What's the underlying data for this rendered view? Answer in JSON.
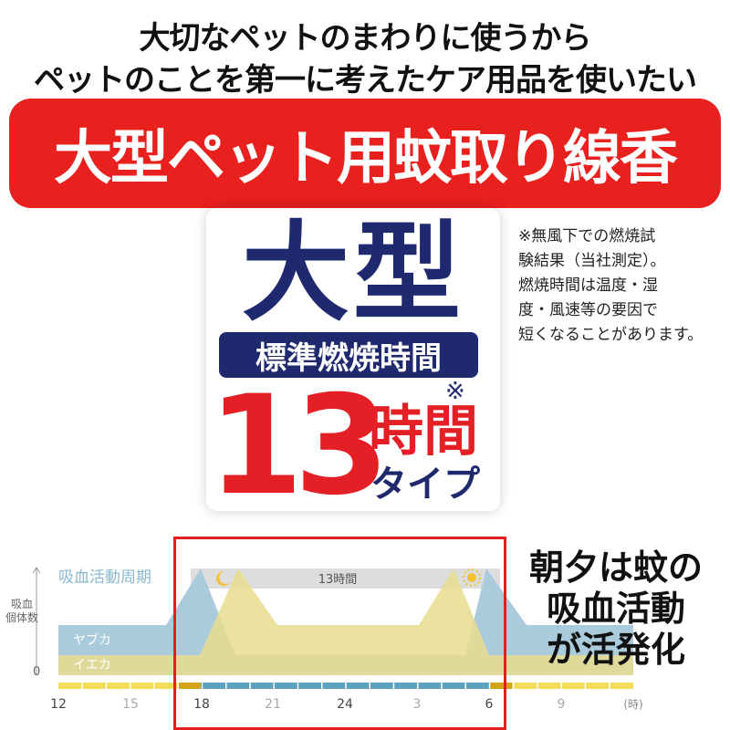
{
  "headline": {
    "line1": "大切なペットのまわりに使うから",
    "line2": "ペットのことを第一に考えたケア用品を使いたい"
  },
  "banner": {
    "title": "大型ペット用蚊取り線香",
    "color": "#e8201e"
  },
  "badge": {
    "size_label": "大型",
    "burn_label": "標準燃焼時間",
    "hours": "13",
    "hours_unit": "時間",
    "type_label": "タイプ",
    "note_mark": "※",
    "navy": "#1f2a6e",
    "red": "#e41f26"
  },
  "footnote": [
    "※無風下での燃焼試",
    "験結果（当社測定）。",
    "燃焼時間は温度・湿",
    "度・風速等の要因で",
    "短くなることがあります。"
  ],
  "diagram": {
    "title": "吸血活動周期",
    "y_label": [
      "吸血",
      "個体数"
    ],
    "y_zero": "0",
    "duration_label": "13時間",
    "series": [
      "ヤブカ",
      "イエカ"
    ],
    "x_ticks": [
      "12",
      "15",
      "18",
      "21",
      "24",
      "3",
      "6",
      "9"
    ],
    "x_unit": "(時)",
    "icons": [
      "moon-icon",
      "sun-icon"
    ]
  },
  "side_text": [
    "朝夕は蚊の",
    "吸血活動",
    "が活発化"
  ]
}
